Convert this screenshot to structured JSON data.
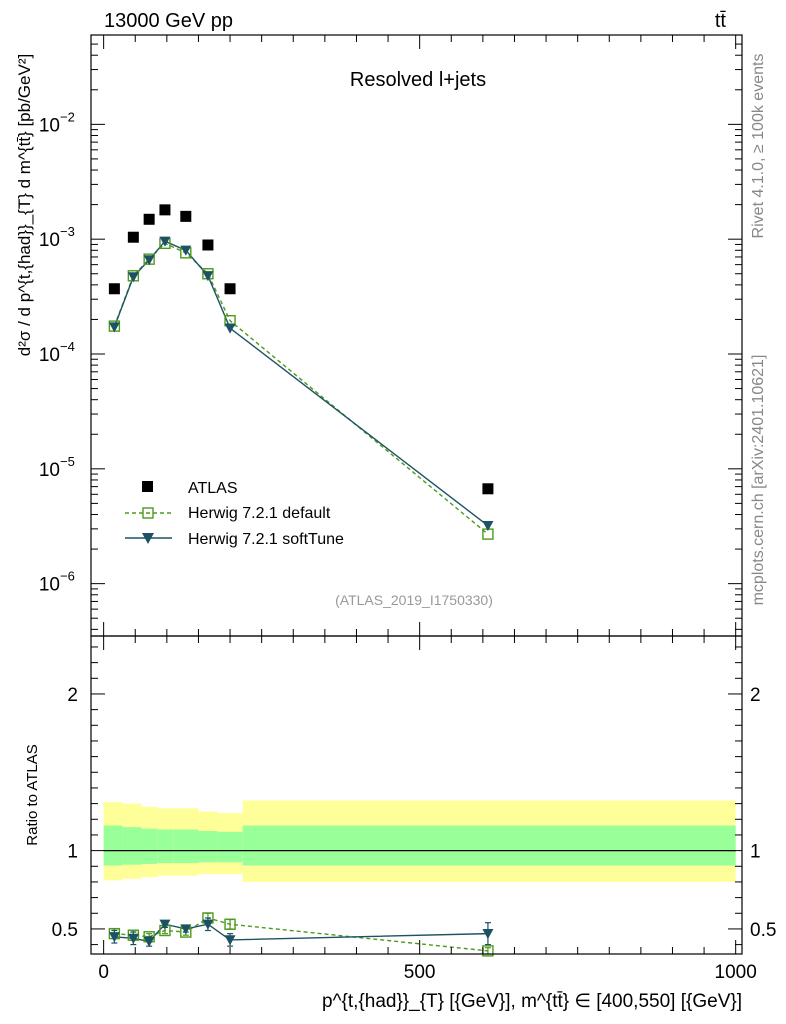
{
  "header": {
    "energy": "13000 GeV pp",
    "process": "tt̄"
  },
  "side_labels": {
    "rivet": "Rivet 4.1.0, ≥ 100k events",
    "mcplots": "mcplots.cern.ch [arXiv:2401.10621]"
  },
  "chart_data": [
    {
      "type": "scatter",
      "title": "Resolved l+jets",
      "annotation": "(ATLAS_2019_I1750330)",
      "ylabel": "d²σ / d p^{t,{had}}_{T} d m^{tt̄} [pb/GeV²]",
      "yscale": "log",
      "xlim": [
        -20,
        1010
      ],
      "ylim": [
        3.5e-07,
        0.06
      ],
      "yticks": [
        {
          "value": 1e-06,
          "base": "10",
          "exp": "−6"
        },
        {
          "value": 1e-05,
          "base": "10",
          "exp": "−5"
        },
        {
          "value": 0.0001,
          "base": "10",
          "exp": "−4"
        },
        {
          "value": 0.001,
          "base": "10",
          "exp": "−3"
        },
        {
          "value": 0.01,
          "base": "10",
          "exp": "−2"
        }
      ],
      "legend": [
        "ATLAS",
        "Herwig 7.2.1 default",
        "Herwig 7.2.1 softTune"
      ],
      "series": [
        {
          "name": "ATLAS",
          "x": [
            17,
            47,
            72,
            97,
            130,
            165,
            200,
            608
          ],
          "y": [
            0.00037,
            0.00104,
            0.00149,
            0.0018,
            0.00158,
            0.00089,
            0.00037,
            6.7e-06
          ]
        },
        {
          "name": "Herwig 7.2.1 default",
          "color": "#4c9a1c",
          "x": [
            17,
            47,
            72,
            97,
            130,
            165,
            200,
            608
          ],
          "y": [
            0.000175,
            0.00048,
            0.00067,
            0.00092,
            0.00076,
            0.0005,
            0.000195,
            2.7e-06
          ]
        },
        {
          "name": "Herwig 7.2.1 softTune",
          "color": "#1d5264",
          "x": [
            17,
            47,
            72,
            97,
            130,
            165,
            200,
            608
          ],
          "y": [
            0.000172,
            0.00047,
            0.00066,
            0.00096,
            0.0008,
            0.00048,
            0.000168,
            3.2e-06
          ]
        }
      ]
    },
    {
      "type": "line",
      "ylabel": "Ratio to ATLAS",
      "xlabel": "p^{t,{had}}_{T} [{GeV}], m^{tt̄} ∈ [400,550] [{GeV}]",
      "xlim": [
        -20,
        1010
      ],
      "ylim": [
        0.34,
        2.37
      ],
      "xticks": [
        0,
        500,
        1000
      ],
      "yticks": [
        0.5,
        1,
        2
      ],
      "bands": {
        "edges": [
          0,
          30,
          60,
          85,
          110,
          150,
          180,
          220,
          1000
        ],
        "yellow_low": [
          0.81,
          0.82,
          0.83,
          0.84,
          0.84,
          0.85,
          0.85,
          0.8
        ],
        "yellow_high": [
          1.31,
          1.3,
          1.28,
          1.27,
          1.27,
          1.25,
          1.24,
          1.32
        ],
        "green_low": [
          0.905,
          0.91,
          0.915,
          0.92,
          0.92,
          0.925,
          0.925,
          0.905
        ],
        "green_high": [
          1.16,
          1.15,
          1.14,
          1.135,
          1.135,
          1.125,
          1.12,
          1.16
        ]
      },
      "series": [
        {
          "name": "Herwig 7.2.1 default",
          "x": [
            17,
            47,
            72,
            97,
            130,
            165,
            200,
            608
          ],
          "y": [
            0.47,
            0.46,
            0.45,
            0.49,
            0.48,
            0.57,
            0.53,
            0.36
          ],
          "err": [
            0.03,
            0.03,
            0.02,
            0.02,
            0.02,
            0.03,
            0.03,
            0.02
          ]
        },
        {
          "name": "Herwig 7.2.1 softTune",
          "x": [
            17,
            47,
            72,
            97,
            130,
            165,
            200,
            608
          ],
          "y": [
            0.45,
            0.44,
            0.42,
            0.53,
            0.5,
            0.53,
            0.43,
            0.47
          ],
          "err": [
            0.04,
            0.04,
            0.03,
            0.02,
            0.02,
            0.04,
            0.04,
            0.07
          ]
        }
      ]
    }
  ]
}
